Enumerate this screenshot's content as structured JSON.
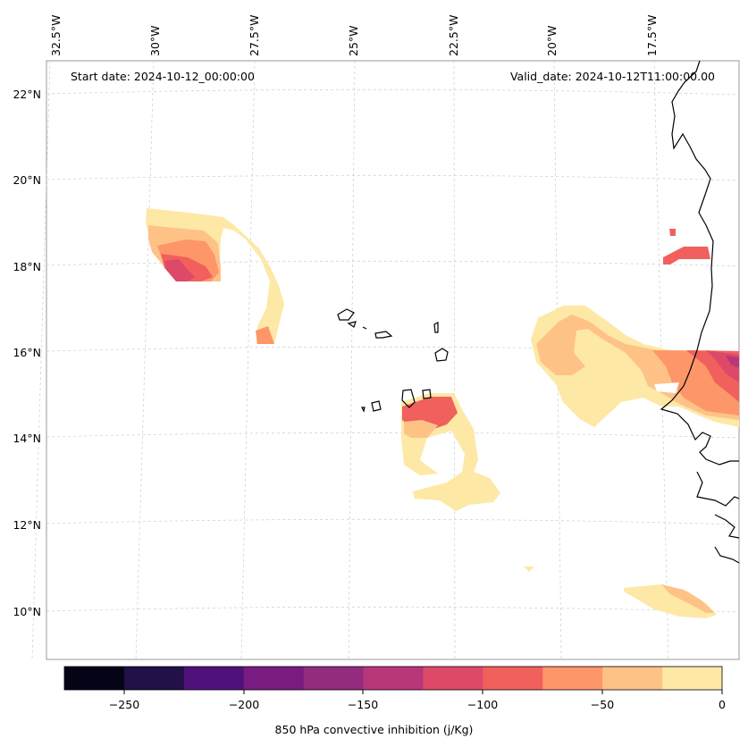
{
  "header": {
    "start_date": "Start date: 2024-10-12_00:00:00",
    "valid_date": "Valid_date: 2024-10-12T11:00:00.00"
  },
  "map": {
    "lon_labels": [
      "32.5°W",
      "30°W",
      "27.5°W",
      "25°W",
      "22.5°W",
      "20°W",
      "17.5°W"
    ],
    "lat_labels": [
      "22°N",
      "20°N",
      "18°N",
      "16°N",
      "14°N",
      "12°N",
      "10°N"
    ]
  },
  "colorbar": {
    "label": "850 hPa convective inhibition (j/Kg)",
    "ticks": [
      "−250",
      "−200",
      "−150",
      "−100",
      "−50",
      "0"
    ],
    "colors": [
      "#050417",
      "#221048",
      "#4f127b",
      "#781c81",
      "#932b7f",
      "#b73779",
      "#dd4968",
      "#f1605d",
      "#fd9668",
      "#fec287",
      "#fde8a6"
    ]
  },
  "legend_colors": {
    "level_0_25": "#fde8a6",
    "level_25_50": "#fec287",
    "level_50_75": "#fd9668",
    "level_75_100": "#f1605d",
    "level_100_125": "#dd4968",
    "level_125_150": "#b73779"
  }
}
